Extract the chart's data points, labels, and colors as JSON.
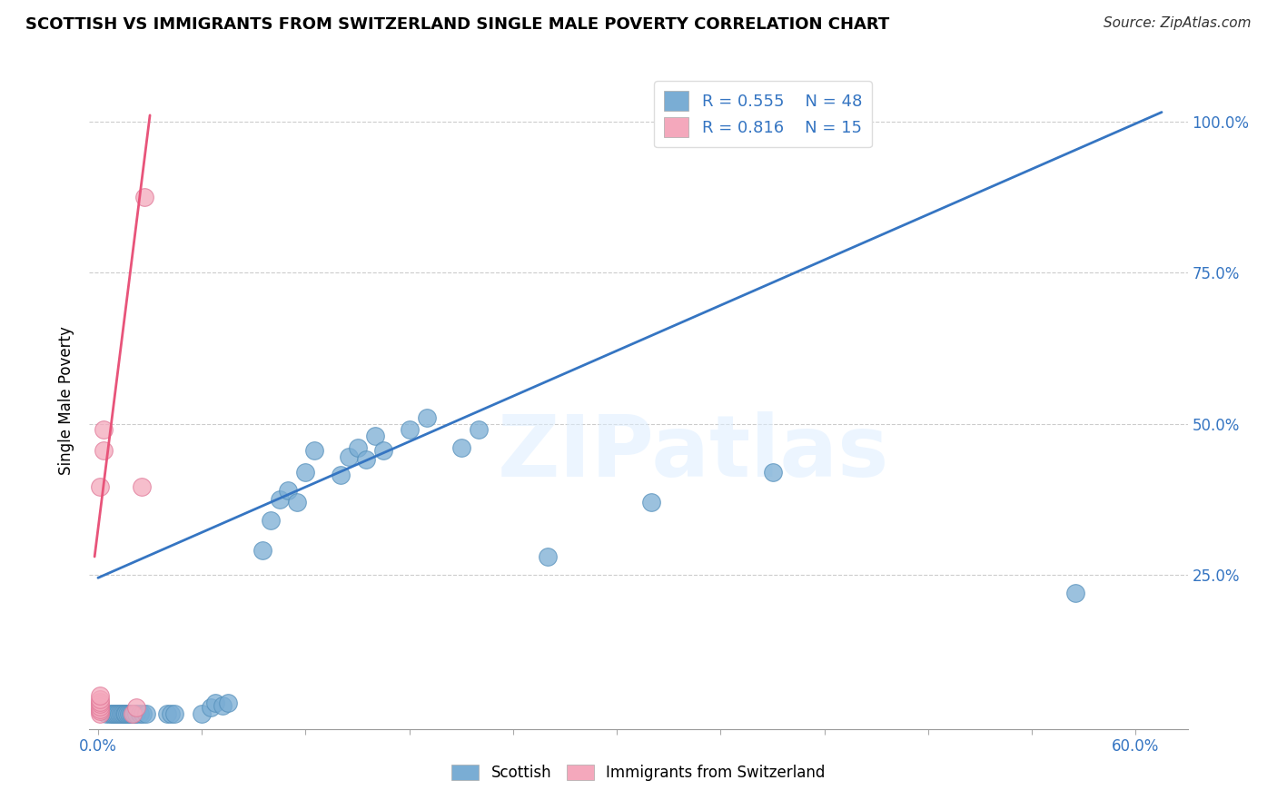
{
  "title": "SCOTTISH VS IMMIGRANTS FROM SWITZERLAND SINGLE MALE POVERTY CORRELATION CHART",
  "source": "Source: ZipAtlas.com",
  "ylabel": "Single Male Poverty",
  "watermark": "ZIPatlas",
  "xlim": [
    -0.005,
    0.63
  ],
  "ylim": [
    -0.005,
    1.08
  ],
  "x_ticks": [
    0.0,
    0.06,
    0.12,
    0.18,
    0.24,
    0.3,
    0.36,
    0.42,
    0.48,
    0.54,
    0.6
  ],
  "x_tick_labels": [
    "0.0%",
    "",
    "",
    "",
    "",
    "",
    "",
    "",
    "",
    "",
    "60.0%"
  ],
  "y_ticks": [
    0.0,
    0.25,
    0.5,
    0.75,
    1.0
  ],
  "y_tick_labels": [
    "",
    "25.0%",
    "50.0%",
    "75.0%",
    "100.0%"
  ],
  "scottish_color": "#7aadd4",
  "scottish_edge": "#5590bb",
  "swiss_color": "#f4a8bc",
  "swiss_edge": "#e07898",
  "line_blue": "#3575c2",
  "line_pink": "#e8547a",
  "legend_r_scottish": "R = 0.555",
  "legend_n_scottish": "N = 48",
  "legend_r_swiss": "R = 0.816",
  "legend_n_swiss": "N = 15",
  "scottish_x": [
    0.005,
    0.007,
    0.008,
    0.009,
    0.01,
    0.011,
    0.012,
    0.013,
    0.014,
    0.015,
    0.016,
    0.017,
    0.018,
    0.019,
    0.021,
    0.022,
    0.024,
    0.026,
    0.028,
    0.04,
    0.042,
    0.044,
    0.06,
    0.065,
    0.068,
    0.072,
    0.075,
    0.095,
    0.1,
    0.105,
    0.11,
    0.115,
    0.12,
    0.125,
    0.14,
    0.145,
    0.15,
    0.155,
    0.16,
    0.165,
    0.18,
    0.19,
    0.21,
    0.22,
    0.26,
    0.32,
    0.39,
    0.565
  ],
  "scottish_y": [
    0.02,
    0.02,
    0.02,
    0.02,
    0.02,
    0.02,
    0.02,
    0.02,
    0.02,
    0.02,
    0.02,
    0.02,
    0.02,
    0.02,
    0.02,
    0.02,
    0.02,
    0.02,
    0.02,
    0.02,
    0.02,
    0.02,
    0.02,
    0.03,
    0.038,
    0.033,
    0.038,
    0.29,
    0.34,
    0.375,
    0.39,
    0.37,
    0.42,
    0.455,
    0.415,
    0.445,
    0.46,
    0.44,
    0.48,
    0.455,
    0.49,
    0.51,
    0.46,
    0.49,
    0.28,
    0.37,
    0.42,
    0.22
  ],
  "swiss_x": [
    0.001,
    0.001,
    0.001,
    0.001,
    0.001,
    0.001,
    0.001,
    0.001,
    0.001,
    0.003,
    0.003,
    0.02,
    0.022,
    0.025,
    0.027
  ],
  "swiss_y": [
    0.02,
    0.025,
    0.028,
    0.032,
    0.036,
    0.04,
    0.045,
    0.05,
    0.395,
    0.455,
    0.49,
    0.02,
    0.03,
    0.395,
    0.875
  ],
  "blue_line_x": [
    0.0,
    0.615
  ],
  "blue_line_y": [
    0.245,
    1.015
  ],
  "pink_line_x": [
    -0.002,
    0.03
  ],
  "pink_line_y": [
    0.28,
    1.01
  ],
  "grid_color": "#cccccc",
  "tick_color": "#aaaaaa"
}
